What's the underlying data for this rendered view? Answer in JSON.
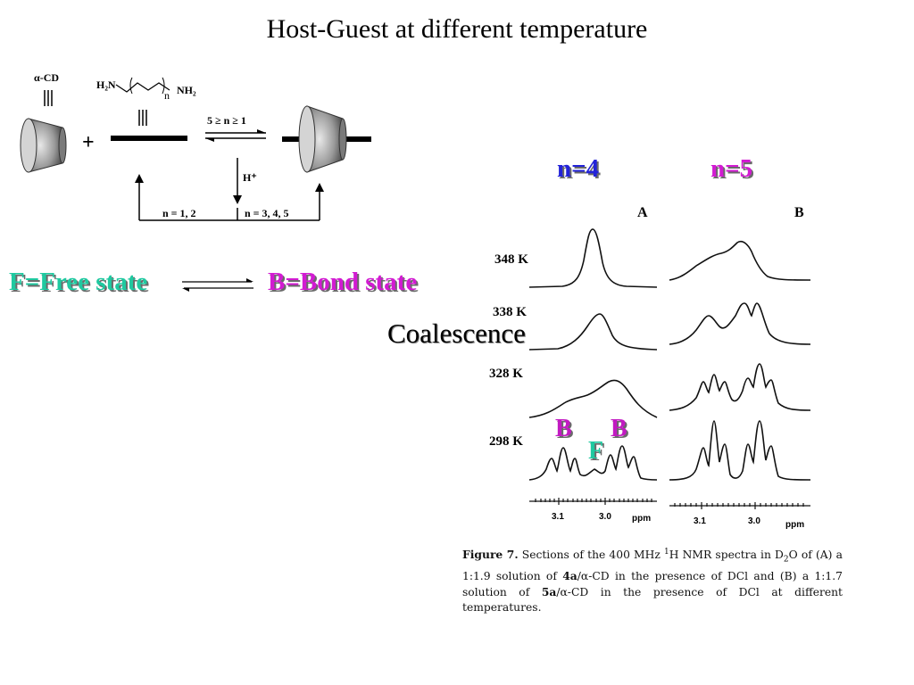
{
  "title": "Host-Guest at different temperature",
  "scheme": {
    "cd_label": "α-CD",
    "amine_left": "H₂N",
    "amine_right": "NH₂",
    "amine_n": "n",
    "plus": "+",
    "equilibrium_condition": "5 ≥ n ≥ 1",
    "acid": "H⁺",
    "branch_left": "n = 1, 2",
    "branch_right": "n = 3, 4, 5"
  },
  "states": {
    "free": "F=Free state",
    "bond": "B=Bond state"
  },
  "coalescence_label": "Coalescence",
  "nmr": {
    "panel_a_series": "n=4",
    "panel_b_series": "n=5",
    "panel_a_label": "A",
    "panel_b_label": "B",
    "temperatures": [
      "348 K",
      "338 K",
      "328 K",
      "298 K"
    ],
    "axis_ticks": [
      "3.1",
      "3.0"
    ],
    "axis_unit": "ppm",
    "peak_labels": {
      "b1": "B",
      "b2": "B",
      "f": "F"
    }
  },
  "caption": {
    "figure": "Figure 7.",
    "text_part1": " Sections of the 400 MHz ",
    "sup1": "1",
    "text_part2": "H NMR spectra in D",
    "sub2": "2",
    "text_part3": "O of (A) a 1:1.9 solution of ",
    "bold_4a": "4a",
    "text_part4": "/α-CD in the presence of DCl and (B) a 1:1.7 solution of ",
    "bold_5a": "5a",
    "text_part5": "/α-CD in the presence of DCl at different temperatures."
  },
  "colors": {
    "free": "#1fc9a0",
    "bond": "#d21bd2",
    "n4": "#2323d8",
    "n5": "#d21bd2"
  }
}
